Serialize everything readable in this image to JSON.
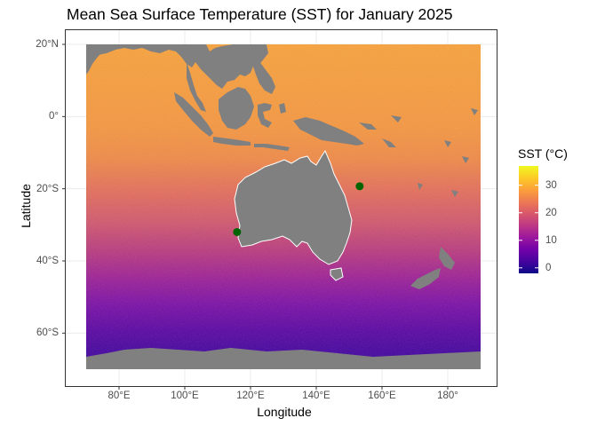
{
  "title": "Mean Sea Surface Temperature (SST) for January 2025",
  "x_axis": {
    "label": "Longitude",
    "ticks": [
      {
        "value": 80,
        "label": "80°E"
      },
      {
        "value": 100,
        "label": "100°E"
      },
      {
        "value": 120,
        "label": "120°E"
      },
      {
        "value": 140,
        "label": "140°E"
      },
      {
        "value": 160,
        "label": "160°E"
      },
      {
        "value": 180,
        "label": "180°"
      }
    ]
  },
  "y_axis": {
    "label": "Latitude",
    "ticks": [
      {
        "value": 20,
        "label": "20°N"
      },
      {
        "value": 0,
        "label": "0°"
      },
      {
        "value": -20,
        "label": "20°S"
      },
      {
        "value": -40,
        "label": "40°S"
      },
      {
        "value": -60,
        "label": "60°S"
      }
    ]
  },
  "legend": {
    "title": "SST (°C)",
    "ticks": [
      {
        "value": 30,
        "label": "30"
      },
      {
        "value": 20,
        "label": "20"
      },
      {
        "value": 10,
        "label": "10"
      },
      {
        "value": 0,
        "label": "0"
      }
    ],
    "range": [
      -2,
      37
    ]
  },
  "colors": {
    "land": "#808080",
    "point": "#006400",
    "grid": "#ebebeb",
    "panel_border": "#333333",
    "coast": "#ffffff",
    "colormap": [
      "#0d0887",
      "#46039f",
      "#7201a8",
      "#9c179e",
      "#bd3786",
      "#d8576b",
      "#ed7953",
      "#fb9f3a",
      "#fdca26",
      "#f0f921"
    ]
  },
  "map_extent": {
    "lon": [
      70,
      190
    ],
    "lat": [
      -70,
      20
    ]
  },
  "points": [
    {
      "lon": 115.9,
      "lat": -32.0
    },
    {
      "lon": 153.2,
      "lat": -19.3
    }
  ]
}
